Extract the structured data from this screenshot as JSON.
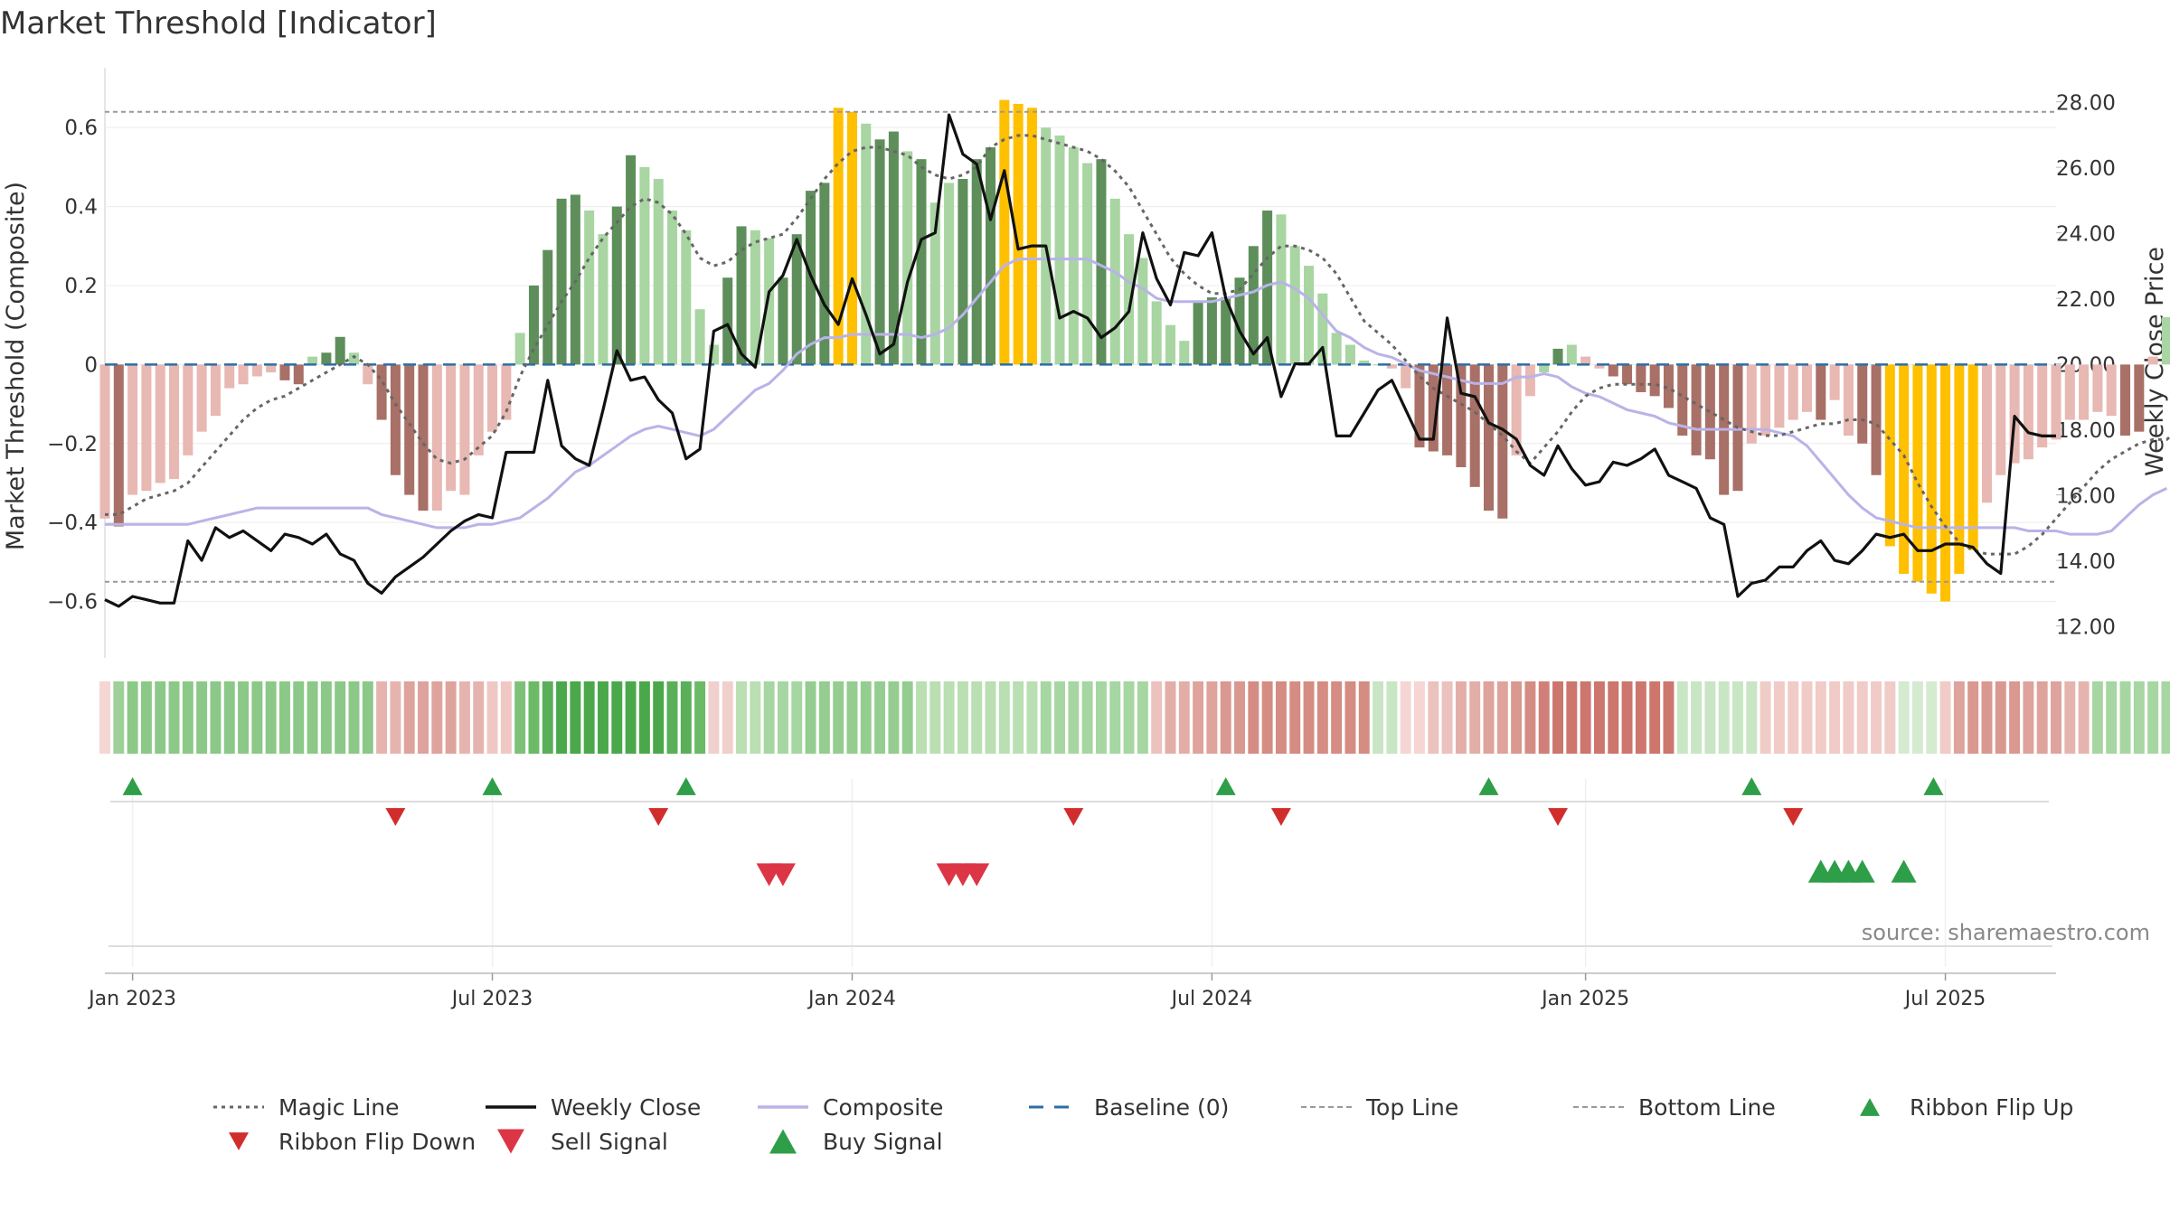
{
  "chart_data": {
    "type": "bar",
    "title": "Market Threshold [Indicator]",
    "ylabel_left": "Market Threshold (Composite)",
    "ylabel_right": "Weekly Close Price",
    "source": "source: sharemaestro.com",
    "ylim_left": [
      -0.72,
      0.74
    ],
    "ylim_right": [
      11.3,
      28.9
    ],
    "yticks_left": [
      -0.6,
      -0.4,
      -0.2,
      0,
      0.2,
      0.4,
      0.6
    ],
    "ytick_labels_left": [
      "−0.6",
      "−0.4",
      "−0.2",
      "0",
      "0.2",
      "0.4",
      "0.6"
    ],
    "yticks_right": [
      12,
      14,
      16,
      18,
      20,
      22,
      24,
      26,
      28
    ],
    "ytick_labels_right": [
      "12.00",
      "14.00",
      "16.00",
      "18.00",
      "20.00",
      "22.00",
      "24.00",
      "26.00",
      "28.00"
    ],
    "x_range": [
      "2022-12-19",
      "2025-09-01"
    ],
    "x_ticks": [
      {
        "date": "2023-01-02",
        "label": "Jan 2023"
      },
      {
        "date": "2023-07-03",
        "label": "Jul 2023"
      },
      {
        "date": "2024-01-01",
        "label": "Jan 2024"
      },
      {
        "date": "2024-07-01",
        "label": "Jul 2024"
      },
      {
        "date": "2025-01-06",
        "label": "Jan 2025"
      },
      {
        "date": "2025-07-07",
        "label": "Jul 2025"
      }
    ],
    "start_date": "2022-12-19",
    "top_line": 0.64,
    "bottom_line": -0.55,
    "composite": [
      -0.39,
      -0.41,
      -0.33,
      -0.32,
      -0.3,
      -0.29,
      -0.23,
      -0.17,
      -0.13,
      -0.06,
      -0.05,
      -0.03,
      -0.02,
      -0.04,
      -0.05,
      0.02,
      0.03,
      0.07,
      0.03,
      -0.05,
      -0.14,
      -0.28,
      -0.33,
      -0.37,
      -0.37,
      -0.32,
      -0.33,
      -0.23,
      -0.17,
      -0.14,
      0.08,
      0.2,
      0.29,
      0.42,
      0.43,
      0.39,
      0.33,
      0.4,
      0.53,
      0.5,
      0.47,
      0.39,
      0.34,
      0.14,
      0.05,
      0.22,
      0.35,
      0.34,
      0.32,
      0.22,
      0.33,
      0.44,
      0.46,
      0.65,
      0.64,
      0.61,
      0.57,
      0.59,
      0.54,
      0.52,
      0.41,
      0.46,
      0.47,
      0.52,
      0.55,
      0.67,
      0.66,
      0.65,
      0.6,
      0.58,
      0.55,
      0.51,
      0.52,
      0.42,
      0.33,
      0.27,
      0.16,
      0.1,
      0.06,
      0.16,
      0.17,
      0.17,
      0.22,
      0.3,
      0.39,
      0.38,
      0.3,
      0.25,
      0.18,
      0.08,
      0.05,
      0.01,
      0,
      -0.01,
      -0.06,
      -0.21,
      -0.22,
      -0.23,
      -0.26,
      -0.31,
      -0.37,
      -0.39,
      -0.23,
      -0.08,
      -0.02,
      0.04,
      0.05,
      0.02,
      -0.01,
      -0.03,
      -0.05,
      -0.07,
      -0.08,
      -0.11,
      -0.18,
      -0.23,
      -0.24,
      -0.33,
      -0.32,
      -0.2,
      -0.18,
      -0.16,
      -0.14,
      -0.12,
      -0.14,
      -0.09,
      -0.18,
      -0.2,
      -0.28,
      -0.46,
      -0.53,
      -0.55,
      -0.58,
      -0.6,
      -0.53,
      -0.47,
      -0.35,
      -0.28,
      -0.25,
      -0.24,
      -0.21,
      -0.19,
      -0.14,
      -0.14,
      -0.12,
      -0.13,
      -0.18,
      -0.17,
      0.02,
      0.12,
      0.2,
      0.23
    ],
    "bar_colors": [
      "#e8b8b3",
      "#a87066",
      "#e8b8b3",
      "#e8b8b3",
      "#e8b8b3",
      "#e8b8b3",
      "#e8b8b3",
      "#e8b8b3",
      "#e8b8b3",
      "#e8b8b3",
      "#e8b8b3",
      "#e8b8b3",
      "#e8b8b3",
      "#a87066",
      "#a87066",
      "#a8d5a2",
      "#5e8f5b",
      "#5e8f5b",
      "#a8d5a2",
      "#e8b8b3",
      "#a87066",
      "#a87066",
      "#a87066",
      "#a87066",
      "#e8b8b3",
      "#e8b8b3",
      "#e8b8b3",
      "#e8b8b3",
      "#e8b8b3",
      "#e8b8b3",
      "#a8d5a2",
      "#5e8f5b",
      "#5e8f5b",
      "#5e8f5b",
      "#5e8f5b",
      "#a8d5a2",
      "#a8d5a2",
      "#5e8f5b",
      "#5e8f5b",
      "#a8d5a2",
      "#a8d5a2",
      "#a8d5a2",
      "#a8d5a2",
      "#a8d5a2",
      "#a8d5a2",
      "#5e8f5b",
      "#5e8f5b",
      "#a8d5a2",
      "#a8d5a2",
      "#5e8f5b",
      "#5e8f5b",
      "#5e8f5b",
      "#5e8f5b",
      "#ffc000",
      "#ffc000",
      "#a8d5a2",
      "#5e8f5b",
      "#5e8f5b",
      "#a8d5a2",
      "#5e8f5b",
      "#a8d5a2",
      "#a8d5a2",
      "#5e8f5b",
      "#5e8f5b",
      "#5e8f5b",
      "#ffc000",
      "#ffc000",
      "#ffc000",
      "#a8d5a2",
      "#a8d5a2",
      "#a8d5a2",
      "#a8d5a2",
      "#5e8f5b",
      "#a8d5a2",
      "#a8d5a2",
      "#a8d5a2",
      "#a8d5a2",
      "#a8d5a2",
      "#a8d5a2",
      "#5e8f5b",
      "#5e8f5b",
      "#5e8f5b",
      "#5e8f5b",
      "#5e8f5b",
      "#5e8f5b",
      "#a8d5a2",
      "#a8d5a2",
      "#a8d5a2",
      "#a8d5a2",
      "#a8d5a2",
      "#a8d5a2",
      "#a8d5a2",
      "#a8d5a2",
      "#e8b8b3",
      "#e8b8b3",
      "#a87066",
      "#a87066",
      "#a87066",
      "#a87066",
      "#a87066",
      "#a87066",
      "#a87066",
      "#e8b8b3",
      "#e8b8b3",
      "#a8d5a2",
      "#5e8f5b",
      "#a8d5a2",
      "#e8b8b3",
      "#e8b8b3",
      "#a87066",
      "#a87066",
      "#a87066",
      "#a87066",
      "#a87066",
      "#a87066",
      "#a87066",
      "#a87066",
      "#a87066",
      "#a87066",
      "#e8b8b3",
      "#e8b8b3",
      "#e8b8b3",
      "#e8b8b3",
      "#e8b8b3",
      "#a87066",
      "#e8b8b3",
      "#e8b8b3",
      "#a87066",
      "#a87066",
      "#ffc000",
      "#ffc000",
      "#ffc000",
      "#ffc000",
      "#ffc000",
      "#ffc000",
      "#ffc000",
      "#e8b8b3",
      "#e8b8b3",
      "#e8b8b3",
      "#e8b8b3",
      "#e8b8b3",
      "#e8b8b3",
      "#e8b8b3",
      "#e8b8b3",
      "#e8b8b3",
      "#e8b8b3",
      "#a87066",
      "#a87066",
      "#e8b8b3",
      "#a8d5a2",
      "#5e8f5b",
      "#5e8f5b",
      "#5e8f5b"
    ],
    "weekly_close": [
      12.8,
      12.6,
      12.9,
      12.8,
      12.7,
      12.7,
      14.6,
      14.0,
      15.0,
      14.7,
      14.9,
      14.6,
      14.3,
      14.8,
      14.7,
      14.5,
      14.8,
      14.2,
      14.0,
      13.3,
      13.0,
      13.5,
      13.8,
      14.1,
      14.5,
      14.9,
      15.2,
      15.4,
      15.3,
      17.3,
      17.3,
      17.3,
      19.5,
      17.5,
      17.1,
      16.9,
      18.6,
      20.4,
      19.5,
      19.6,
      18.9,
      18.5,
      17.1,
      17.4,
      21.0,
      21.2,
      20.3,
      19.9,
      22.2,
      22.7,
      23.8,
      22.7,
      21.8,
      21.2,
      22.6,
      21.5,
      20.3,
      20.6,
      22.5,
      23.8,
      24.0,
      27.6,
      26.4,
      26.1,
      24.4,
      25.9,
      23.5,
      23.6,
      23.6,
      21.4,
      21.6,
      21.4,
      20.8,
      21.1,
      21.6,
      24.0,
      22.6,
      21.8,
      23.4,
      23.3,
      24.0,
      22.0,
      21.0,
      20.3,
      20.8,
      19.0,
      20.0,
      20.0,
      20.5,
      17.8,
      17.8,
      18.5,
      19.2,
      19.5,
      18.6,
      17.7,
      17.7,
      21.4,
      19.1,
      19.0,
      18.2,
      18.0,
      17.7,
      16.9,
      16.6,
      17.5,
      16.8,
      16.3,
      16.4,
      17.0,
      16.9,
      17.1,
      17.4,
      16.6,
      16.4,
      16.2,
      15.3,
      15.1,
      12.9,
      13.3,
      13.4,
      13.8,
      13.8,
      14.3,
      14.6,
      14.0,
      13.9,
      14.3,
      14.8,
      14.7,
      14.8,
      14.3,
      14.3,
      14.5,
      14.5,
      14.4,
      13.9,
      13.6,
      18.4,
      17.9,
      17.8,
      17.8
    ],
    "composite_line": [
      15.1,
      15.1,
      15.1,
      15.1,
      15.1,
      15.1,
      15.1,
      15.2,
      15.3,
      15.4,
      15.5,
      15.6,
      15.6,
      15.6,
      15.6,
      15.6,
      15.6,
      15.6,
      15.6,
      15.6,
      15.4,
      15.3,
      15.2,
      15.1,
      15.0,
      15.0,
      15.0,
      15.1,
      15.1,
      15.2,
      15.3,
      15.6,
      15.9,
      16.3,
      16.7,
      16.9,
      17.2,
      17.5,
      17.8,
      18.0,
      18.1,
      18.0,
      17.9,
      17.8,
      18.0,
      18.4,
      18.8,
      19.2,
      19.4,
      19.8,
      20.3,
      20.6,
      20.8,
      20.8,
      20.9,
      20.9,
      20.9,
      20.9,
      20.9,
      20.8,
      20.9,
      21.1,
      21.5,
      22.0,
      22.5,
      23.0,
      23.2,
      23.2,
      23.2,
      23.2,
      23.2,
      23.2,
      23.0,
      22.8,
      22.5,
      22.3,
      22.0,
      21.9,
      21.9,
      21.9,
      21.9,
      22.0,
      22.1,
      22.2,
      22.4,
      22.5,
      22.3,
      22.0,
      21.5,
      21.0,
      20.8,
      20.5,
      20.3,
      20.2,
      20.0,
      19.8,
      19.7,
      19.6,
      19.5,
      19.4,
      19.4,
      19.4,
      19.6,
      19.6,
      19.7,
      19.6,
      19.3,
      19.1,
      19.0,
      18.8,
      18.6,
      18.5,
      18.4,
      18.2,
      18.1,
      18.0,
      18.0,
      18.0,
      18.0,
      18.0,
      18.0,
      17.9,
      17.8,
      17.5,
      17.0,
      16.5,
      16.0,
      15.6,
      15.3,
      15.2,
      15.1,
      15.0,
      15.0,
      15.0,
      15.0,
      15.0,
      15.0,
      15.0,
      15.0,
      14.9,
      14.9,
      14.9,
      14.8,
      14.8,
      14.8,
      14.9,
      15.3,
      15.7,
      16.0,
      16.2
    ],
    "magic_line": [
      -0.38,
      -0.38,
      -0.36,
      -0.34,
      -0.33,
      -0.32,
      -0.3,
      -0.26,
      -0.22,
      -0.18,
      -0.14,
      -0.11,
      -0.09,
      -0.08,
      -0.06,
      -0.04,
      -0.02,
      0.0,
      0.02,
      0.0,
      -0.04,
      -0.1,
      -0.15,
      -0.2,
      -0.24,
      -0.25,
      -0.24,
      -0.21,
      -0.18,
      -0.12,
      -0.03,
      0.04,
      0.1,
      0.16,
      0.21,
      0.27,
      0.32,
      0.36,
      0.4,
      0.42,
      0.41,
      0.38,
      0.33,
      0.27,
      0.25,
      0.26,
      0.29,
      0.31,
      0.32,
      0.33,
      0.37,
      0.42,
      0.47,
      0.51,
      0.54,
      0.55,
      0.55,
      0.54,
      0.53,
      0.5,
      0.48,
      0.47,
      0.48,
      0.5,
      0.55,
      0.57,
      0.58,
      0.58,
      0.57,
      0.56,
      0.55,
      0.54,
      0.52,
      0.49,
      0.45,
      0.39,
      0.33,
      0.27,
      0.23,
      0.2,
      0.18,
      0.18,
      0.19,
      0.23,
      0.27,
      0.3,
      0.3,
      0.29,
      0.27,
      0.23,
      0.17,
      0.11,
      0.08,
      0.05,
      0.01,
      -0.03,
      -0.06,
      -0.08,
      -0.1,
      -0.12,
      -0.15,
      -0.18,
      -0.22,
      -0.25,
      -0.21,
      -0.17,
      -0.12,
      -0.08,
      -0.06,
      -0.05,
      -0.05,
      -0.05,
      -0.05,
      -0.06,
      -0.08,
      -0.1,
      -0.12,
      -0.14,
      -0.16,
      -0.17,
      -0.18,
      -0.18,
      -0.17,
      -0.16,
      -0.15,
      -0.15,
      -0.14,
      -0.14,
      -0.15,
      -0.19,
      -0.23,
      -0.3,
      -0.36,
      -0.41,
      -0.45,
      -0.47,
      -0.48,
      -0.48,
      -0.48,
      -0.46,
      -0.43,
      -0.39,
      -0.35,
      -0.31,
      -0.27,
      -0.24,
      -0.22,
      -0.2,
      -0.19,
      -0.19,
      -0.16,
      -0.08,
      0.0
    ],
    "ribbon_colors": [
      "#f5d6d3",
      "#9fd09a",
      "#8cc887",
      "#8cc887",
      "#8cc887",
      "#8cc887",
      "#8cc887",
      "#8cc887",
      "#8cc887",
      "#8cc887",
      "#8cc887",
      "#8cc887",
      "#8cc887",
      "#8cc887",
      "#8cc887",
      "#8cc887",
      "#8cc887",
      "#8cc887",
      "#8cc887",
      "#8cc887",
      "#e6b4ae",
      "#e6b4ae",
      "#dea39c",
      "#dea39c",
      "#dea39c",
      "#dea39c",
      "#e6b4ae",
      "#e6b4ae",
      "#f0c8c3",
      "#f0c8c3",
      "#7dc178",
      "#6aba66",
      "#5aaf59",
      "#4aa84b",
      "#4aa84b",
      "#4aa84b",
      "#4aa84b",
      "#4aa84b",
      "#4aa84b",
      "#4aa84b",
      "#4aa84b",
      "#5aaf59",
      "#5aaf59",
      "#6aba66",
      "#f0d0cc",
      "#f0d0cc",
      "#b9dfb3",
      "#b9dfb3",
      "#a6d6a1",
      "#a6d6a1",
      "#a6d6a1",
      "#94cd8f",
      "#94cd8f",
      "#94cd8f",
      "#94cd8f",
      "#94cd8f",
      "#94cd8f",
      "#94cd8f",
      "#94cd8f",
      "#b9dfb3",
      "#b9dfb3",
      "#b9dfb3",
      "#b9dfb3",
      "#b9dfb3",
      "#b9dfb3",
      "#b9dfb3",
      "#b9dfb3",
      "#b9dfb3",
      "#a6d6a1",
      "#a6d6a1",
      "#a6d6a1",
      "#a6d6a1",
      "#a6d6a1",
      "#a6d6a1",
      "#a6d6a1",
      "#a6d6a1",
      "#ebc2bd",
      "#e3aea8",
      "#e3aea8",
      "#dfa39c",
      "#dfa39c",
      "#d99890",
      "#d99890",
      "#d58c83",
      "#d58c83",
      "#d58c83",
      "#d58c83",
      "#d58c83",
      "#d58c83",
      "#d58c83",
      "#d58c83",
      "#d58c83",
      "#c8e6c3",
      "#c8e6c3",
      "#f5d6d3",
      "#f5d6d3",
      "#ebc2bd",
      "#ebc2bd",
      "#e3aea8",
      "#e3aea8",
      "#dfa39c",
      "#dfa39c",
      "#d99890",
      "#d58c83",
      "#d08078",
      "#cd766e",
      "#cd766e",
      "#cd766e",
      "#cd766e",
      "#cd766e",
      "#cd766e",
      "#cd766e",
      "#cd766e",
      "#cd766e",
      "#c8e6c3",
      "#c8e6c3",
      "#c8e6c3",
      "#c8e6c3",
      "#c8e6c3",
      "#c8e6c3",
      "#f0cbc7",
      "#f0cbc7",
      "#f0cbc7",
      "#f0cbc7",
      "#f0cbc7",
      "#f0cbc7",
      "#f0cbc7",
      "#f0cbc7",
      "#f0cbc7",
      "#f0cbc7",
      "#d4ebd0",
      "#d4ebd0",
      "#d4ebd0",
      "#f0cbc7",
      "#dea39c",
      "#d99890",
      "#d99890",
      "#d99890",
      "#d99890",
      "#dea39c",
      "#dea39c",
      "#dea39c",
      "#e6b4ae",
      "#e6b4ae",
      "#a6d6a1",
      "#a6d6a1",
      "#a6d6a1",
      "#a6d6a1",
      "#a6d6a1",
      "#a6d6a1",
      "#94cd8f",
      "#94cd8f",
      "#94cd8f",
      "#94cd8f",
      "#94cd8f",
      "#6aba66",
      "#5aaf59"
    ],
    "ribbon_flip_up": [
      "2023-01-02",
      "2023-07-03",
      "2023-10-09",
      "2024-07-08",
      "2024-11-18",
      "2025-03-31",
      "2025-07-01"
    ],
    "ribbon_flip_down": [
      "2023-05-15",
      "2023-09-25",
      "2024-04-22",
      "2024-08-05",
      "2024-12-23",
      "2025-04-21"
    ],
    "sell_signal": [
      "2023-11-20",
      "2023-11-27",
      "2024-02-19",
      "2024-02-26",
      "2024-03-04"
    ],
    "buy_signal": [
      "2025-05-05",
      "2025-05-12",
      "2025-05-19",
      "2025-05-26",
      "2025-06-16"
    ],
    "legend_position": "bottom",
    "legend": [
      {
        "label": "Magic Line",
        "style": "dotted",
        "color": "#666666"
      },
      {
        "label": "Weekly Close",
        "style": "solid",
        "color": "#111111"
      },
      {
        "label": "Composite",
        "style": "solid",
        "color": "#b9b3e8"
      },
      {
        "label": "Baseline (0)",
        "style": "dashed",
        "color": "#2e6da4"
      },
      {
        "label": "Top Line",
        "style": "dashed-light",
        "color": "#999999"
      },
      {
        "label": "Bottom Line",
        "style": "dashed-light",
        "color": "#999999"
      },
      {
        "label": "Ribbon Flip Up",
        "style": "tri-up",
        "color": "#2e9e48"
      },
      {
        "label": "Ribbon Flip Down",
        "style": "tri-down",
        "color": "#d12d2d"
      },
      {
        "label": "Sell Signal",
        "style": "tri-down-big",
        "color": "#dc3545"
      },
      {
        "label": "Buy Signal",
        "style": "tri-up-big",
        "color": "#2e9e48"
      }
    ]
  }
}
